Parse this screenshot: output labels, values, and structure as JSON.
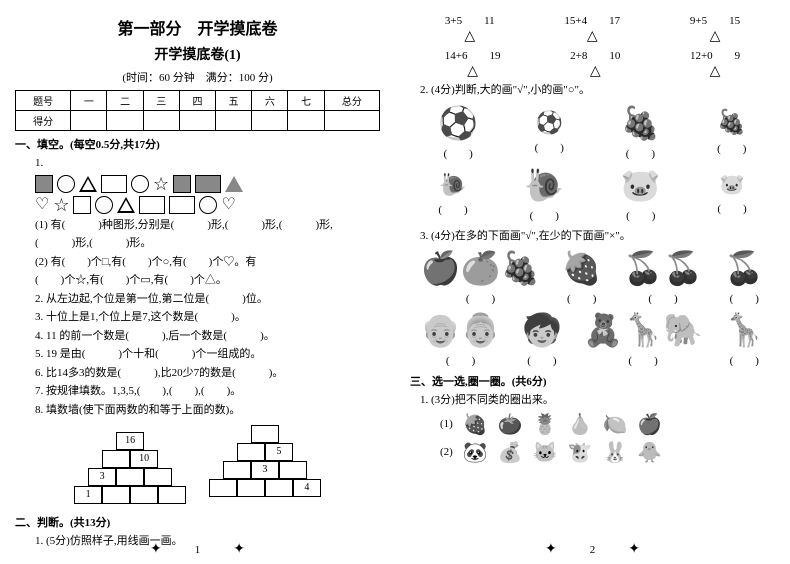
{
  "page1": {
    "title": "第一部分　开学摸底卷",
    "subtitle": "开学摸底卷(1)",
    "timing": "(时间：60 分钟　满分：100 分)",
    "score_header": [
      "题号",
      "一",
      "二",
      "三",
      "四",
      "五",
      "六",
      "七",
      "总分"
    ],
    "score_row": "得分",
    "sec1": {
      "title": "一、填空。(每空0.5分,共17分)",
      "q1_1": "(1) 有(　　　)种图形,分别是(　　　)形,(　　　)形,(　　　)形,",
      "q1_1b": "(　　　)形,(　　　)形。",
      "q1_2": "(2) 有(　　)个□,有(　　)个○,有(　　)个♡。有",
      "q1_2b": "(　　)个☆,有(　　)个▭,有(　　)个△。",
      "q2": "2. 从左边起,个位是第一位,第二位是(　　　)位。",
      "q3": "3. 十位上是1,个位上是7,这个数是(　　　)。",
      "q4": "4. 11 的前一个数是(　　　),后一个数是(　　　)。",
      "q5": "5. 19 是由(　　　)个十和(　　　)个一组成的。",
      "q6": "6. 比14多3的数是(　　　),比20少7的数是(　　　)。",
      "q7": "7. 按规律填数。1,3,5,(　　),(　　),(　　)。",
      "q8": "8. 填数墙(使下面两数的和等于上面的数)。",
      "pyr1": {
        "r1": [
          "16"
        ],
        "r2": [
          "",
          "10"
        ],
        "r3": [
          "3",
          "",
          ""
        ],
        "r4": [
          "1",
          "",
          "",
          ""
        ]
      },
      "pyr2": {
        "r1": [
          ""
        ],
        "r2": [
          "",
          "5"
        ],
        "r3": [
          "",
          "3",
          ""
        ],
        "r4": [
          "",
          "",
          "",
          "4"
        ]
      }
    },
    "sec2": {
      "title": "二、判断。(共13分)",
      "q1": "1. (5分)仿照样子,用线画一画。"
    },
    "page_num": "1"
  },
  "page2": {
    "eq": [
      {
        "l": "3+5",
        "r": "11"
      },
      {
        "l": "15+4",
        "r": "17"
      },
      {
        "l": "9+5",
        "r": "15"
      },
      {
        "l": "14+6",
        "r": "19"
      },
      {
        "l": "2+8",
        "r": "10"
      },
      {
        "l": "12+0",
        "r": "9"
      }
    ],
    "q2": "2. (4分)判断,大的画\"√\",小的画\"○\"。",
    "q3": "3. (4分)在多的下面画\"√\",在少的下面画\"×\"。",
    "sec3": {
      "title": "三、选一选,圈一圈。(共6分)",
      "q1": "1. (3分)把不同类的圈出来。"
    },
    "page_num": "2"
  }
}
